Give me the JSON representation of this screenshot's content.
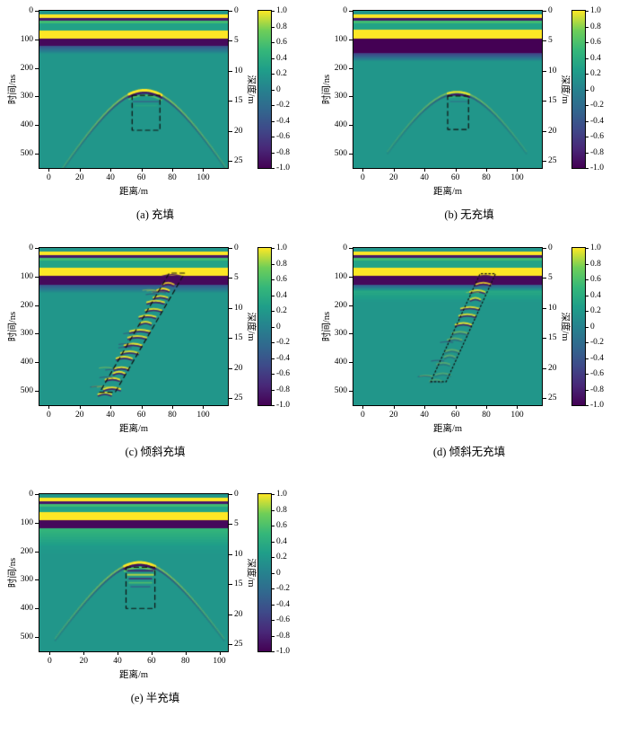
{
  "figure": {
    "colors": {
      "background": "#ffffff",
      "frame": "#000000",
      "annotation": "#111111",
      "viridis_stops": [
        "#440154",
        "#482878",
        "#3e4a89",
        "#31688e",
        "#26828e",
        "#1f9e89",
        "#35b779",
        "#6ece58",
        "#fde725"
      ]
    },
    "axes": {
      "xlabel": "距离/m",
      "ylabel_left": "时间/ns",
      "ylabel_right": "深度/m",
      "x_ticks": [
        0,
        20,
        40,
        60,
        80,
        100
      ],
      "time_ticks": [
        0,
        100,
        200,
        300,
        400,
        500
      ],
      "depth_ticks": [
        0,
        5,
        10,
        15,
        20,
        25
      ],
      "colorbar_ticks": [
        "1.0",
        "0.8",
        "0.6",
        "0.4",
        "0.2",
        "0",
        "-0.2",
        "-0.4",
        "-0.6",
        "-0.8",
        "-1.0"
      ]
    },
    "panels": [
      {
        "id": "a",
        "caption": "(a) 充填"
      },
      {
        "id": "b",
        "caption": "(b) 无充填"
      },
      {
        "id": "c",
        "caption": "(c) 倾斜充填"
      },
      {
        "id": "d",
        "caption": "(d) 倾斜无充填"
      },
      {
        "id": "e",
        "caption": "(e) 半充填"
      }
    ]
  },
  "chart_data": [
    {
      "type": "heatmap",
      "panel": "a",
      "title": "(a) 充填",
      "colormap": "viridis",
      "xlabel": "距离/m",
      "ylabel_left": "时间/ns",
      "ylabel_right": "深度/m",
      "x_range": [
        -6,
        116
      ],
      "time_range": [
        0,
        550
      ],
      "depth_range": [
        0,
        26.2
      ],
      "value_range": [
        -1,
        1
      ],
      "background_value": 0.18,
      "layers": [
        [
          12,
          25,
          1,
          1
        ],
        [
          25,
          35,
          -0.85,
          -0.85
        ],
        [
          35,
          44,
          0.55,
          0.55
        ],
        [
          44,
          69,
          0.28,
          0.28
        ],
        [
          69,
          96,
          1,
          1
        ],
        [
          96,
          122,
          -0.95,
          -0.95
        ],
        [
          122,
          152,
          -0.45,
          0.18
        ]
      ],
      "hyperbola": {
        "x0": 62,
        "t0": 282,
        "slope": 9,
        "cap": [
          52,
          73
        ],
        "tail_span": 55,
        "tail_alpha": 0.5,
        "rings": [
          [
            -4,
            1,
            3
          ],
          [
            5,
            -0.9,
            2.2
          ],
          [
            14,
            0.65,
            1.4
          ]
        ]
      },
      "stripes": [
        [
          318,
          55,
          71,
          -0.55,
          0.5
        ],
        [
          332,
          56,
          70,
          0.45,
          0.4
        ]
      ],
      "box": {
        "kind": "rect",
        "x1": 54,
        "x2": 72,
        "t1": 296,
        "t2": 418,
        "dash": [
          5,
          4
        ]
      }
    },
    {
      "type": "heatmap",
      "panel": "b",
      "title": "(b) 无充填",
      "colormap": "viridis",
      "xlabel": "距离/m",
      "ylabel_left": "时间/ns",
      "ylabel_right": "深度/m",
      "x_range": [
        -6,
        116
      ],
      "time_range": [
        0,
        550
      ],
      "depth_range": [
        0,
        26.2
      ],
      "value_range": [
        -1,
        1
      ],
      "background_value": 0.18,
      "layers": [
        [
          12,
          25,
          1,
          1
        ],
        [
          25,
          35,
          -0.85,
          -0.85
        ],
        [
          35,
          44,
          0.55,
          0.55
        ],
        [
          44,
          66,
          0.3,
          0.3
        ],
        [
          66,
          96,
          1,
          1
        ],
        [
          96,
          148,
          -1,
          -1
        ],
        [
          148,
          178,
          -0.6,
          0.18
        ]
      ],
      "hyperbola": {
        "x0": 61,
        "t0": 288,
        "slope": 9,
        "cap": [
          55,
          69
        ],
        "tail_span": 45,
        "tail_alpha": 0.35,
        "rings": [
          [
            -4,
            0.95,
            2.4
          ],
          [
            5,
            -0.9,
            2
          ],
          [
            13,
            0.5,
            1.2
          ]
        ]
      },
      "stripes": [
        [
          318,
          57,
          68,
          -0.4,
          0.35
        ]
      ],
      "box": {
        "kind": "rect",
        "x1": 55,
        "x2": 68.5,
        "t1": 298,
        "t2": 415,
        "dash": [
          5,
          4
        ]
      }
    },
    {
      "type": "heatmap",
      "panel": "c",
      "title": "(c) 倾斜充填",
      "colormap": "viridis",
      "xlabel": "距离/m",
      "ylabel_left": "时间/ns",
      "ylabel_right": "深度/m",
      "x_range": [
        -6,
        116
      ],
      "time_range": [
        0,
        550
      ],
      "depth_range": [
        0,
        26.2
      ],
      "value_range": [
        -1,
        1
      ],
      "background_value": 0.18,
      "layers": [
        [
          12,
          25,
          1,
          1
        ],
        [
          25,
          35,
          -0.85,
          -0.85
        ],
        [
          35,
          44,
          0.55,
          0.55
        ],
        [
          44,
          70,
          0.3,
          0.3
        ],
        [
          70,
          98,
          1,
          1
        ],
        [
          98,
          128,
          -0.95,
          -0.95
        ],
        [
          128,
          158,
          -0.45,
          0.18
        ]
      ],
      "incline": {
        "x1": 37,
        "t1": 508,
        "x2": 80,
        "t2": 92,
        "halfwidth": 5,
        "n": 18,
        "amp": 1,
        "fade": "none",
        "scatter": 16
      },
      "box": {
        "kind": "para",
        "corners": [
          [
            33,
            505
          ],
          [
            43,
            505
          ],
          [
            88,
            88
          ],
          [
            78,
            88
          ]
        ],
        "dash": [
          5,
          4
        ]
      }
    },
    {
      "type": "heatmap",
      "panel": "d",
      "title": "(d) 倾斜无充填",
      "colormap": "viridis",
      "xlabel": "距离/m",
      "ylabel_left": "时间/ns",
      "ylabel_right": "深度/m",
      "x_range": [
        -6,
        116
      ],
      "time_range": [
        0,
        550
      ],
      "depth_range": [
        0,
        26.2
      ],
      "value_range": [
        -1,
        1
      ],
      "background_value": 0.18,
      "layers": [
        [
          12,
          25,
          1,
          1
        ],
        [
          25,
          35,
          -0.85,
          -0.85
        ],
        [
          35,
          44,
          0.55,
          0.55
        ],
        [
          44,
          70,
          0.3,
          0.3
        ],
        [
          70,
          98,
          1,
          1
        ],
        [
          98,
          128,
          -0.95,
          -0.95
        ],
        [
          128,
          152,
          -0.4,
          0.35
        ],
        [
          152,
          190,
          0.35,
          0.18
        ]
      ],
      "incline": {
        "x1": 48,
        "t1": 462,
        "x2": 80,
        "t2": 95,
        "halfwidth": 4.5,
        "n": 14,
        "amp": 0.9,
        "fade": "bottom",
        "scatter": 5
      },
      "box": {
        "kind": "para",
        "corners": [
          [
            44,
            468
          ],
          [
            54,
            468
          ],
          [
            86,
            90
          ],
          [
            76,
            90
          ]
        ],
        "dash": [
          1.6,
          2.6
        ]
      }
    },
    {
      "type": "heatmap",
      "panel": "e",
      "title": "(e) 半充填",
      "colormap": "viridis",
      "xlabel": "距离/m",
      "ylabel_left": "时间/ns",
      "ylabel_right": "深度/m",
      "x_range": [
        -6,
        105
      ],
      "time_range": [
        0,
        550
      ],
      "depth_range": [
        0,
        26.2
      ],
      "value_range": [
        -1,
        1
      ],
      "background_value": 0.18,
      "layers": [
        [
          12,
          25,
          1,
          1
        ],
        [
          25,
          35,
          -0.85,
          -0.85
        ],
        [
          35,
          44,
          0.55,
          0.55
        ],
        [
          44,
          63,
          0.3,
          0.3
        ],
        [
          63,
          90,
          1,
          1
        ],
        [
          90,
          120,
          -0.95,
          -0.95
        ],
        [
          120,
          185,
          0.5,
          0.22
        ],
        [
          185,
          215,
          0.22,
          0.18
        ]
      ],
      "hyperbola": {
        "x0": 53,
        "t0": 243,
        "slope": 9,
        "cap": [
          44,
          62
        ],
        "tail_span": 50,
        "tail_alpha": 0.5,
        "rings": [
          [
            -4,
            1,
            3
          ],
          [
            5,
            -0.95,
            2.4
          ],
          [
            14,
            0.75,
            1.6
          ]
        ]
      },
      "stripes": [
        [
          268,
          46,
          61,
          -0.85,
          0.85
        ],
        [
          282,
          46,
          61,
          0.9,
          0.85
        ],
        [
          296,
          47,
          60,
          -0.8,
          0.8
        ],
        [
          310,
          47,
          60,
          0.7,
          0.7
        ],
        [
          324,
          48,
          59,
          -0.5,
          0.55
        ]
      ],
      "box": {
        "kind": "rect",
        "x1": 45,
        "x2": 62,
        "t1": 256,
        "t2": 400,
        "dash": [
          5,
          4
        ]
      }
    }
  ]
}
